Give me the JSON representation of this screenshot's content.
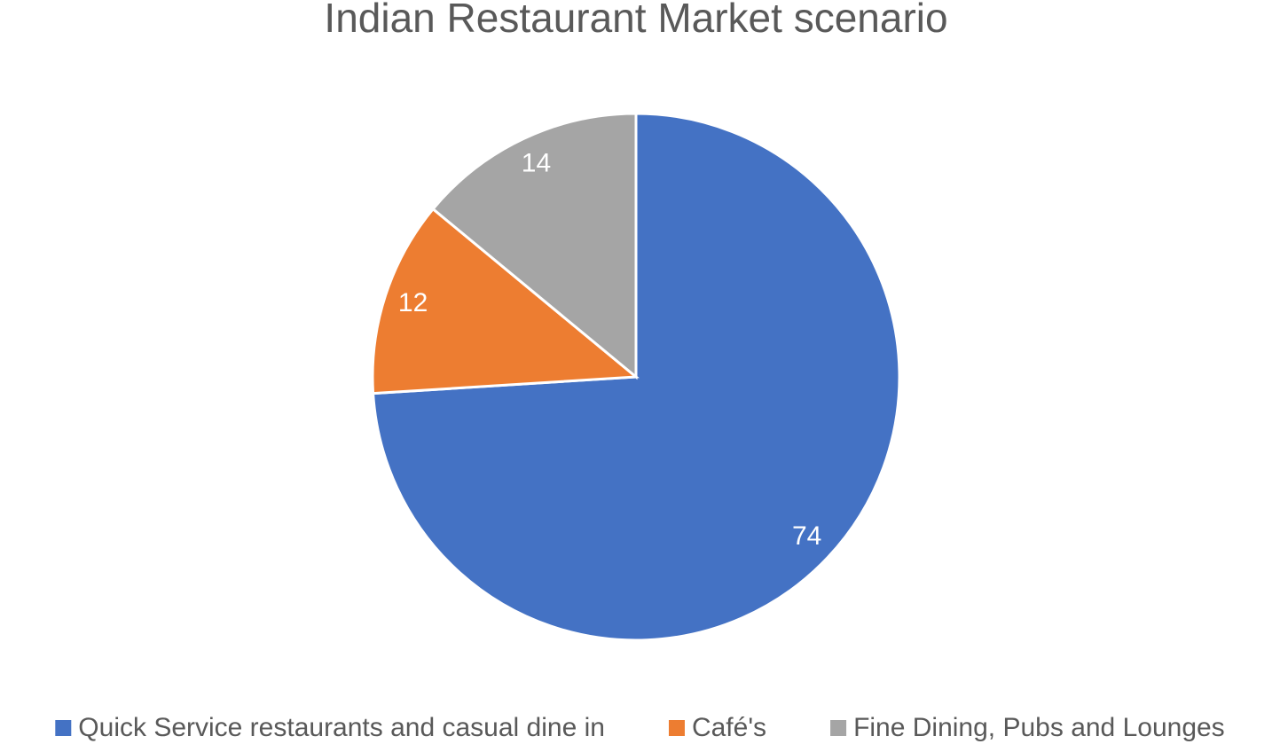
{
  "chart_data": {
    "type": "pie",
    "title": "Indian Restaurant Market scenario",
    "categories": [
      "Quick Service restaurants and casual dine in",
      "Café's",
      "Fine Dining, Pubs and Lounges"
    ],
    "values": [
      74,
      12,
      14
    ],
    "colors": [
      "#4472c4",
      "#ed7d31",
      "#a5a5a5"
    ],
    "legend": "bottom"
  }
}
